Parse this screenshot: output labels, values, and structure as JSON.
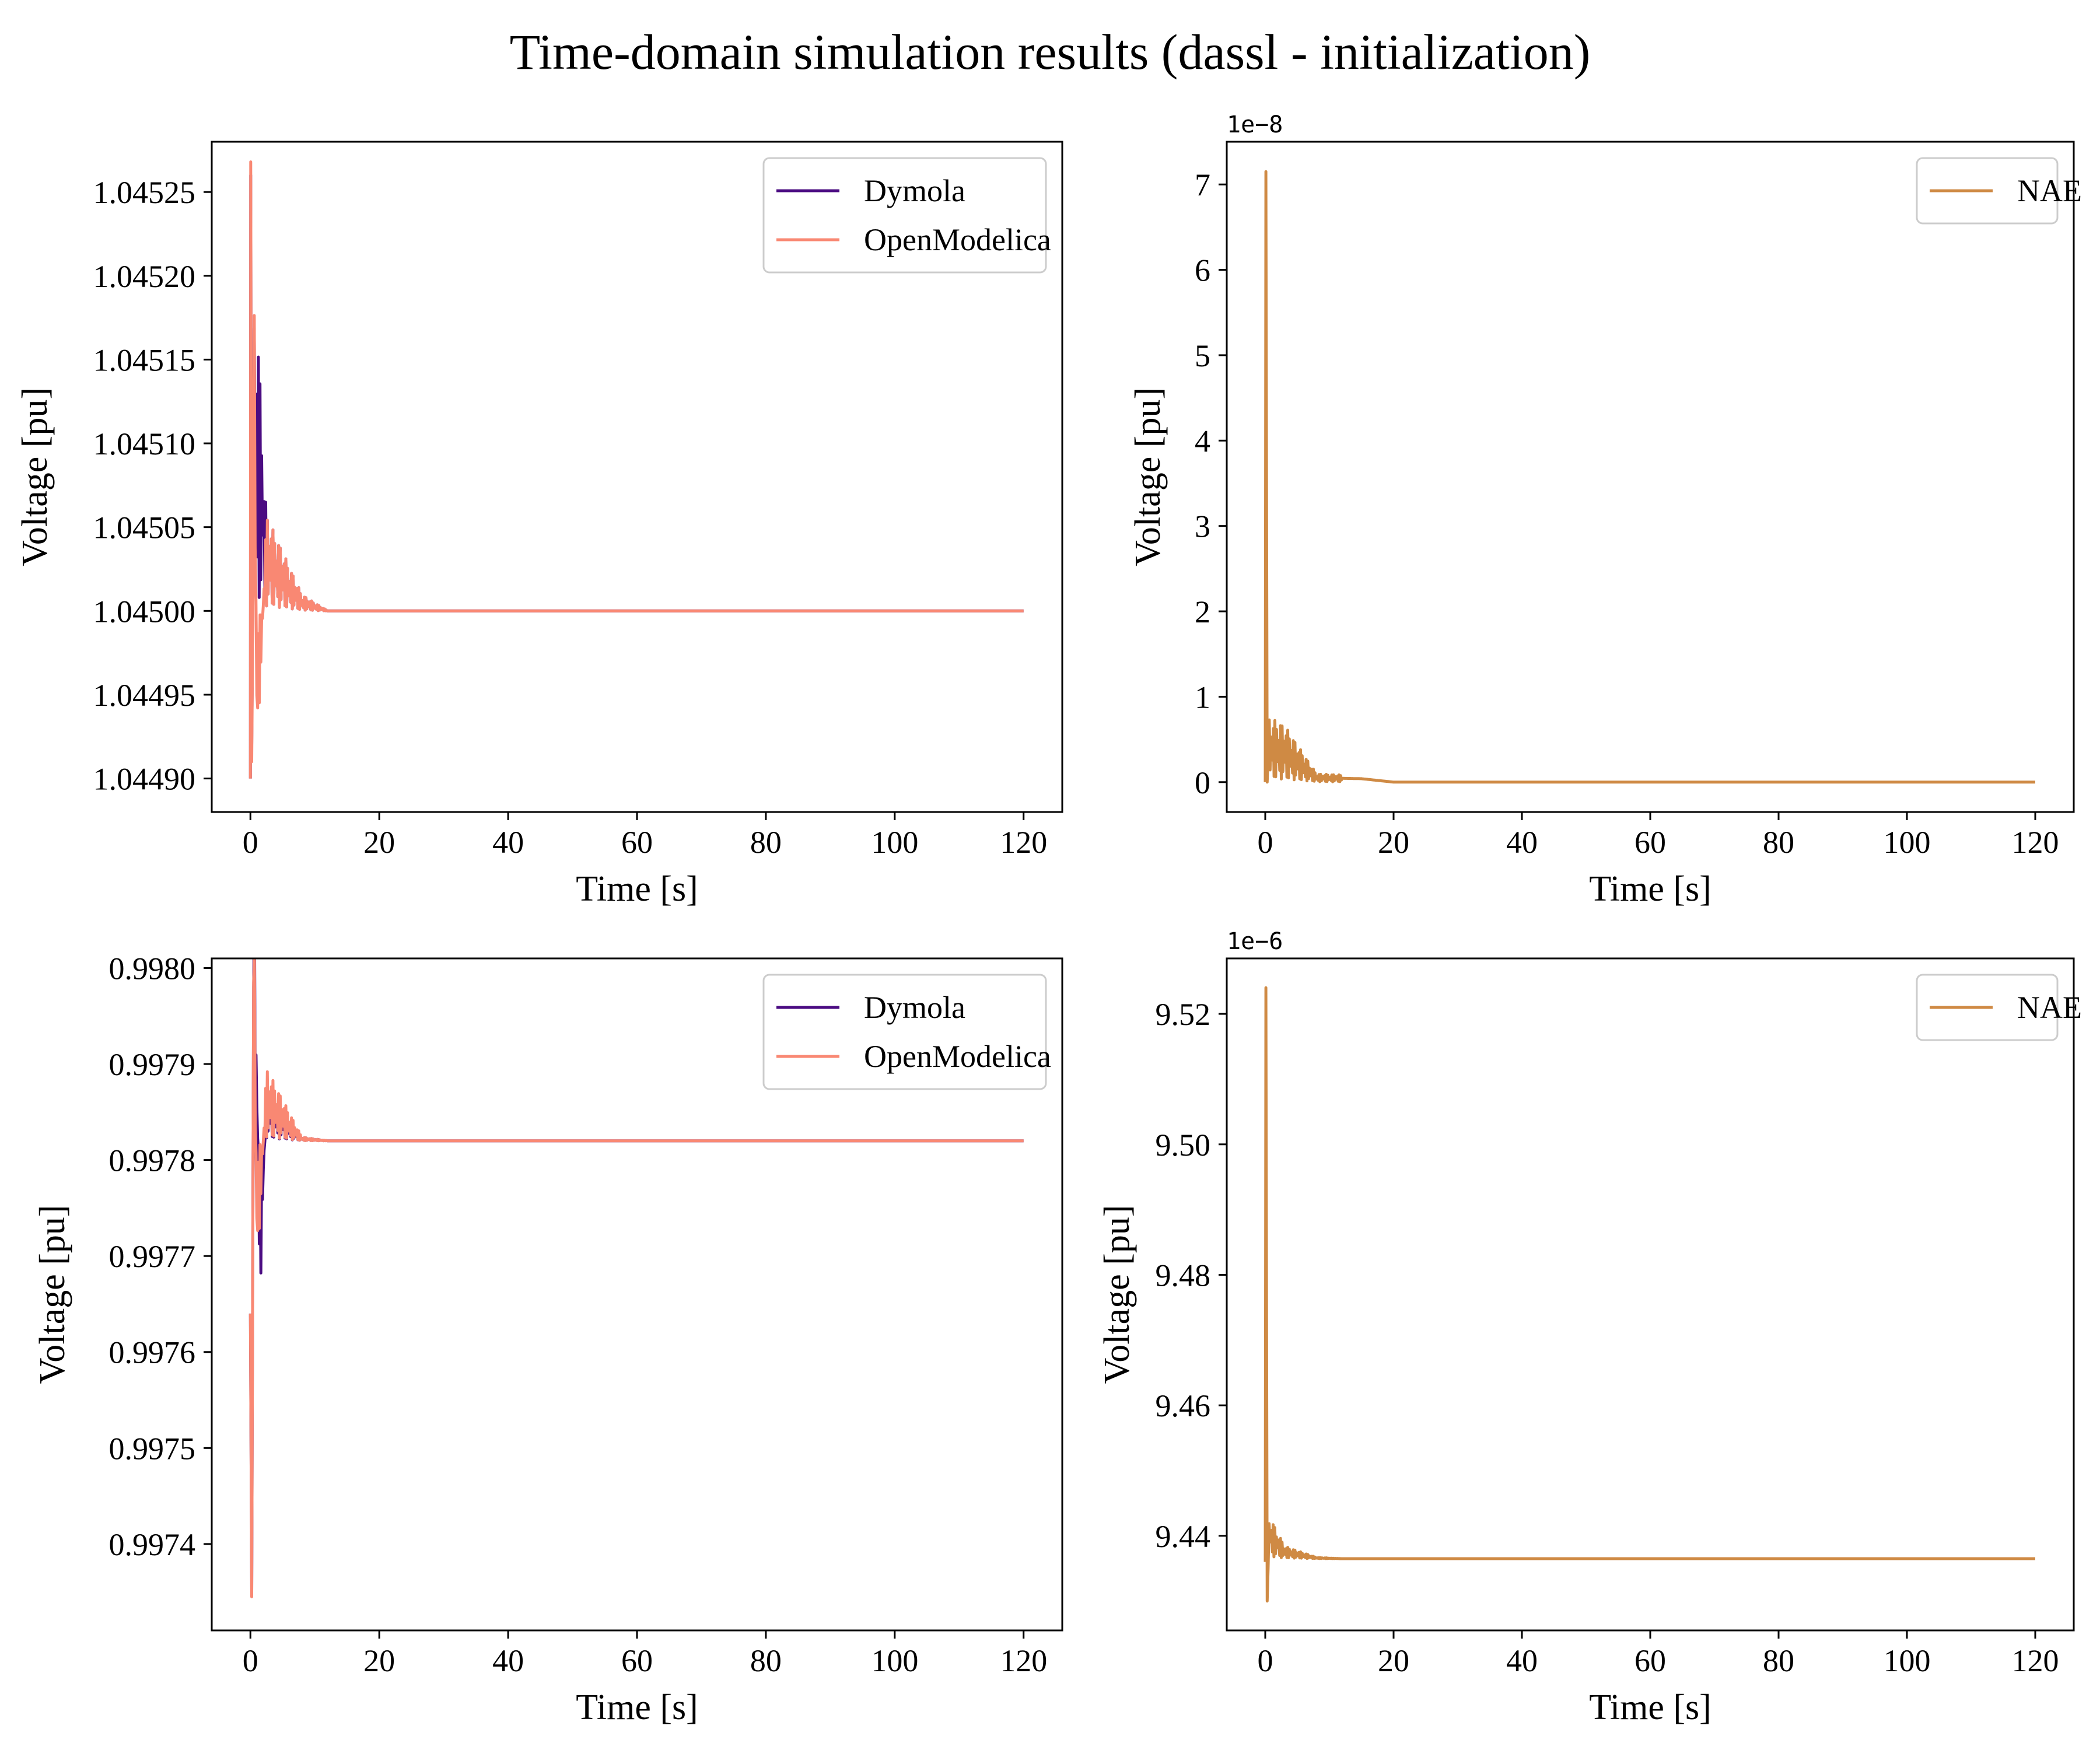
{
  "figure": {
    "title": "Time-domain simulation results (dassl - initialization)"
  },
  "colors": {
    "dymola": "#4b0c82",
    "openmodelica": "#f98873",
    "nae": "#cf8a44",
    "axes": "#000000"
  },
  "chart_data": [
    {
      "type": "line",
      "title": "",
      "xlabel": "Time [s]",
      "ylabel": "Voltage [pu]",
      "offset_text": "",
      "xlim": [
        -6,
        126
      ],
      "ylim": [
        1.04488,
        1.04528
      ],
      "xticks": [
        0,
        20,
        40,
        60,
        80,
        100,
        120
      ],
      "xtick_labels": [
        "0",
        "20",
        "40",
        "60",
        "80",
        "100",
        "120"
      ],
      "yticks": [
        1.0449,
        1.04495,
        1.045,
        1.04505,
        1.0451,
        1.04515,
        1.0452,
        1.04525
      ],
      "ytick_labels": [
        "1.04490",
        "1.04495",
        "1.04500",
        "1.04505",
        "1.04510",
        "1.04515",
        "1.04520",
        "1.04525"
      ],
      "legend_position": "top-right",
      "grid": false,
      "final_value": 1.045,
      "series": [
        {
          "name": "Dymola",
          "color": "#4b0c82",
          "points": [
            [
              0,
              1.0449
            ],
            [
              0.05,
              1.04526
            ],
            [
              0.2,
              1.04492
            ],
            [
              0.6,
              1.04511
            ],
            [
              2.5,
              1.04503
            ],
            [
              8,
              1.045005
            ],
            [
              12,
              1.045
            ],
            [
              120,
              1.045
            ]
          ]
        },
        {
          "name": "OpenModelica",
          "color": "#f98873",
          "points": [
            [
              0,
              1.0449
            ],
            [
              0.05,
              1.045268
            ],
            [
              0.2,
              1.04491
            ],
            [
              0.6,
              1.045115
            ],
            [
              1.0,
              1.04495
            ],
            [
              2.5,
              1.04503
            ],
            [
              8,
              1.045005
            ],
            [
              12,
              1.045
            ],
            [
              120,
              1.045
            ]
          ]
        }
      ]
    },
    {
      "type": "line",
      "title": "",
      "xlabel": "Time [s]",
      "ylabel": "Voltage [pu]",
      "offset_text": "1e−8",
      "xlim": [
        -6,
        126
      ],
      "ylim": [
        -0.35,
        7.5
      ],
      "xticks": [
        0,
        20,
        40,
        60,
        80,
        100,
        120
      ],
      "xtick_labels": [
        "0",
        "20",
        "40",
        "60",
        "80",
        "100",
        "120"
      ],
      "yticks": [
        0,
        1,
        2,
        3,
        4,
        5,
        6,
        7
      ],
      "ytick_labels": [
        "0",
        "1",
        "2",
        "3",
        "4",
        "5",
        "6",
        "7"
      ],
      "legend_position": "top-right",
      "grid": false,
      "final_value": 0,
      "series": [
        {
          "name": "NAE",
          "color": "#cf8a44",
          "points": [
            [
              0,
              0
            ],
            [
              0.1,
              7.15
            ],
            [
              0.3,
              0
            ],
            [
              0.5,
              0.4
            ],
            [
              3,
              0.35
            ],
            [
              8,
              0.05
            ],
            [
              15,
              0.04
            ],
            [
              20,
              0
            ],
            [
              120,
              0
            ]
          ]
        }
      ]
    },
    {
      "type": "line",
      "title": "",
      "xlabel": "Time [s]",
      "ylabel": "Voltage [pu]",
      "offset_text": "",
      "xlim": [
        -6,
        126
      ],
      "ylim": [
        0.99731,
        0.99801
      ],
      "xticks": [
        0,
        20,
        40,
        60,
        80,
        100,
        120
      ],
      "xtick_labels": [
        "0",
        "20",
        "40",
        "60",
        "80",
        "100",
        "120"
      ],
      "yticks": [
        0.9974,
        0.9975,
        0.9976,
        0.9977,
        0.9978,
        0.9979,
        0.998
      ],
      "ytick_labels": [
        "0.9974",
        "0.9975",
        "0.9976",
        "0.9977",
        "0.9978",
        "0.9979",
        "0.9980"
      ],
      "legend_position": "top-right",
      "grid": false,
      "final_value": 0.99782,
      "series": [
        {
          "name": "Dymola",
          "color": "#4b0c82",
          "points": [
            [
              0,
              0.99764
            ],
            [
              0.2,
              0.99735
            ],
            [
              0.5,
              0.99798
            ],
            [
              1.5,
              0.99773
            ],
            [
              2.5,
              0.99785
            ],
            [
              8,
              0.997822
            ],
            [
              12,
              0.99782
            ],
            [
              120,
              0.99782
            ]
          ]
        },
        {
          "name": "OpenModelica",
          "color": "#f98873",
          "points": [
            [
              0,
              0.99764
            ],
            [
              0.2,
              0.997345
            ],
            [
              0.5,
              0.997985
            ],
            [
              1.0,
              0.99774
            ],
            [
              2.5,
              0.99786
            ],
            [
              8,
              0.997822
            ],
            [
              12,
              0.99782
            ],
            [
              120,
              0.99782
            ]
          ]
        }
      ]
    },
    {
      "type": "line",
      "title": "",
      "xlabel": "Time [s]",
      "ylabel": "Voltage [pu]",
      "offset_text": "1e−6",
      "xlim": [
        -6,
        126
      ],
      "ylim": [
        9.4255,
        9.5285
      ],
      "xticks": [
        0,
        20,
        40,
        60,
        80,
        100,
        120
      ],
      "xtick_labels": [
        "0",
        "20",
        "40",
        "60",
        "80",
        "100",
        "120"
      ],
      "yticks": [
        9.44,
        9.46,
        9.48,
        9.5,
        9.52
      ],
      "ytick_labels": [
        "9.44",
        "9.46",
        "9.48",
        "9.50",
        "9.52"
      ],
      "legend_position": "top-right",
      "grid": false,
      "final_value": 9.4365,
      "series": [
        {
          "name": "NAE",
          "color": "#cf8a44",
          "points": [
            [
              0,
              9.436
            ],
            [
              0.1,
              9.524
            ],
            [
              0.3,
              9.43
            ],
            [
              0.6,
              9.44
            ],
            [
              3,
              9.4375
            ],
            [
              8,
              9.4366
            ],
            [
              12,
              9.4365
            ],
            [
              120,
              9.4365
            ]
          ]
        }
      ]
    }
  ]
}
